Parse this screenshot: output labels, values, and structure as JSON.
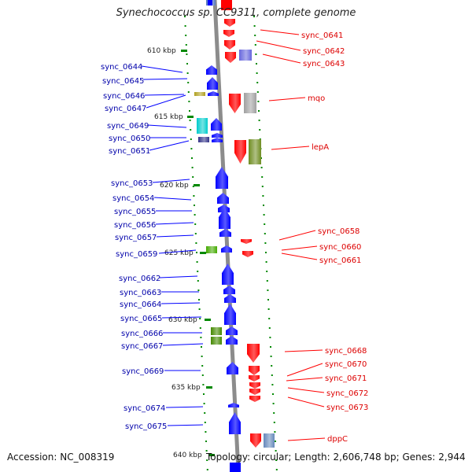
{
  "title": "Synechococcus sp. CC9311, complete genome",
  "accession": "Accession: NC_008319",
  "topology": "Topology: circular; Length: 2,606,748 bp; Genes: 2,944",
  "colors": {
    "forward": "#ff0000",
    "reverse": "#0000ff",
    "forward_label": "#dd0000",
    "reverse_label": "#0000aa",
    "backbone": "#8c8c8c",
    "tick": "#008800"
  },
  "kbp_ticks": [
    {
      "label": "610 kbp"
    },
    {
      "label": "615 kbp"
    },
    {
      "label": "620 kbp"
    },
    {
      "label": "625 kbp"
    },
    {
      "label": "630 kbp"
    },
    {
      "label": "635 kbp"
    },
    {
      "label": "640 kbp"
    }
  ],
  "forward_genes": [
    {
      "label": "sync_0641"
    },
    {
      "label": "sync_0642"
    },
    {
      "label": "sync_0643"
    },
    {
      "label": "mqo"
    },
    {
      "label": "lepA"
    },
    {
      "label": "sync_0658"
    },
    {
      "label": "sync_0660"
    },
    {
      "label": "sync_0661"
    },
    {
      "label": "sync_0668"
    },
    {
      "label": "sync_0670"
    },
    {
      "label": "sync_0671"
    },
    {
      "label": "sync_0672"
    },
    {
      "label": "sync_0673"
    },
    {
      "label": "dppC"
    }
  ],
  "reverse_genes": [
    {
      "label": "sync_0644"
    },
    {
      "label": "sync_0645"
    },
    {
      "label": "sync_0646"
    },
    {
      "label": "sync_0647"
    },
    {
      "label": "sync_0649"
    },
    {
      "label": "sync_0650"
    },
    {
      "label": "sync_0651"
    },
    {
      "label": "sync_0653"
    },
    {
      "label": "sync_0654"
    },
    {
      "label": "sync_0655"
    },
    {
      "label": "sync_0656"
    },
    {
      "label": "sync_0657"
    },
    {
      "label": "sync_0659"
    },
    {
      "label": "sync_0662"
    },
    {
      "label": "sync_0663"
    },
    {
      "label": "sync_0664"
    },
    {
      "label": "sync_0665"
    },
    {
      "label": "sync_0666"
    },
    {
      "label": "sync_0667"
    },
    {
      "label": "sync_0669"
    },
    {
      "label": "sync_0674"
    },
    {
      "label": "sync_0675"
    }
  ]
}
